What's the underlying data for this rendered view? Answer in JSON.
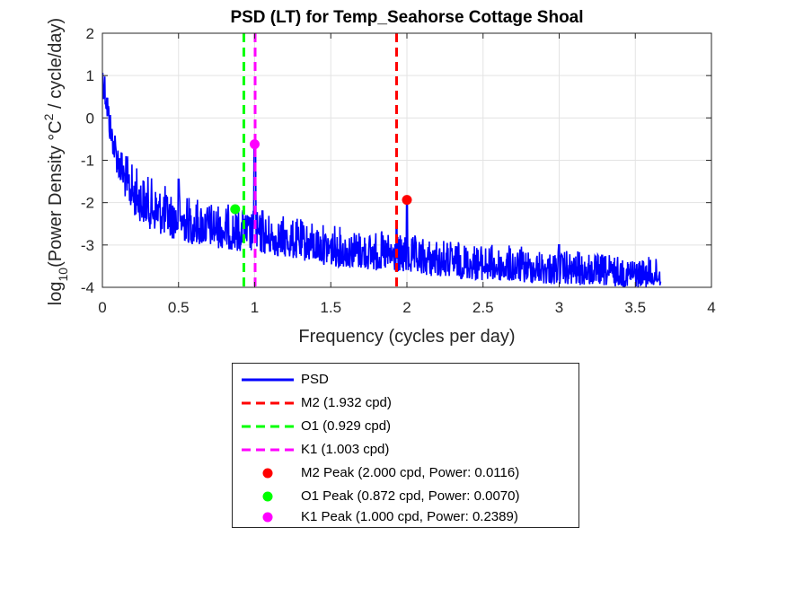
{
  "chart_data": {
    "type": "line",
    "title": "PSD (LT) for Temp_Seahorse Cottage Shoal",
    "xlabel": "Frequency (cycles per day)",
    "ylabel": {
      "pre": "log",
      "sub": "10",
      "mid": "(Power Density °C",
      "sup": "2",
      "post": " / cycle/day)"
    },
    "xlim": [
      0,
      4
    ],
    "ylim": [
      -4,
      2
    ],
    "xticks": [
      "0",
      "0.5",
      "1",
      "1.5",
      "2",
      "2.5",
      "3",
      "3.5",
      "4"
    ],
    "yticks": [
      "-4",
      "-3",
      "-2",
      "-1",
      "0",
      "1",
      "2"
    ],
    "grid": true,
    "series": [
      {
        "name": "PSD",
        "color": "#0000ff",
        "x_max": 3.67,
        "envelope_upper": [
          [
            0.0,
            1.5
          ],
          [
            0.02,
            1.2
          ],
          [
            0.05,
            0.3
          ],
          [
            0.1,
            -0.4
          ],
          [
            0.15,
            -0.8
          ],
          [
            0.2,
            -1.05
          ],
          [
            0.3,
            -1.35
          ],
          [
            0.4,
            -1.55
          ],
          [
            0.5,
            -1.7
          ],
          [
            0.6,
            -1.82
          ],
          [
            0.7,
            -1.92
          ],
          [
            0.8,
            -2.0
          ],
          [
            0.9,
            -2.08
          ],
          [
            1.0,
            -2.15
          ],
          [
            1.2,
            -2.3
          ],
          [
            1.5,
            -2.5
          ],
          [
            2.0,
            -2.75
          ],
          [
            2.5,
            -2.95
          ],
          [
            3.0,
            -3.1
          ],
          [
            3.5,
            -3.25
          ],
          [
            3.67,
            -3.3
          ]
        ],
        "envelope_lower": [
          [
            0.0,
            0.6
          ],
          [
            0.02,
            0.2
          ],
          [
            0.05,
            -0.6
          ],
          [
            0.1,
            -1.4
          ],
          [
            0.15,
            -1.9
          ],
          [
            0.2,
            -2.3
          ],
          [
            0.3,
            -2.6
          ],
          [
            0.4,
            -2.8
          ],
          [
            0.5,
            -2.9
          ],
          [
            0.6,
            -3.0
          ],
          [
            0.7,
            -3.05
          ],
          [
            0.8,
            -3.1
          ],
          [
            0.9,
            -3.15
          ],
          [
            1.0,
            -3.2
          ],
          [
            1.2,
            -3.3
          ],
          [
            1.5,
            -3.5
          ],
          [
            2.0,
            -3.7
          ],
          [
            2.5,
            -3.85
          ],
          [
            3.0,
            -3.95
          ],
          [
            3.5,
            -4.0
          ],
          [
            3.67,
            -4.0
          ]
        ],
        "spikes": [
          [
            0.5,
            -1.45
          ],
          [
            1.0,
            -0.62
          ],
          [
            1.003,
            -0.9
          ],
          [
            2.0,
            -1.94
          ],
          [
            1.932,
            -2.6
          ],
          [
            3.0,
            -3.0
          ],
          [
            0.929,
            -2.4
          ],
          [
            1.05,
            -2.2
          ]
        ]
      }
    ],
    "reference_lines": [
      {
        "name": "M2 (1.932 cpd)",
        "x": 1.932,
        "color": "#ff0000"
      },
      {
        "name": "O1 (0.929 cpd)",
        "x": 0.929,
        "color": "#00ff00"
      },
      {
        "name": "K1 (1.003 cpd)",
        "x": 1.003,
        "color": "#ff00ff"
      }
    ],
    "peaks": [
      {
        "name": "M2 Peak (2.000 cpd, Power: 0.0116)",
        "x": 2.0,
        "y": -1.936,
        "color": "#ff0000"
      },
      {
        "name": "O1 Peak (0.872 cpd, Power: 0.0070)",
        "x": 0.872,
        "y": -2.155,
        "color": "#00ff00"
      },
      {
        "name": "K1 Peak (1.000 cpd, Power: 0.2389)",
        "x": 1.0,
        "y": -0.622,
        "color": "#ff00ff"
      }
    ],
    "legend_position": "below"
  }
}
